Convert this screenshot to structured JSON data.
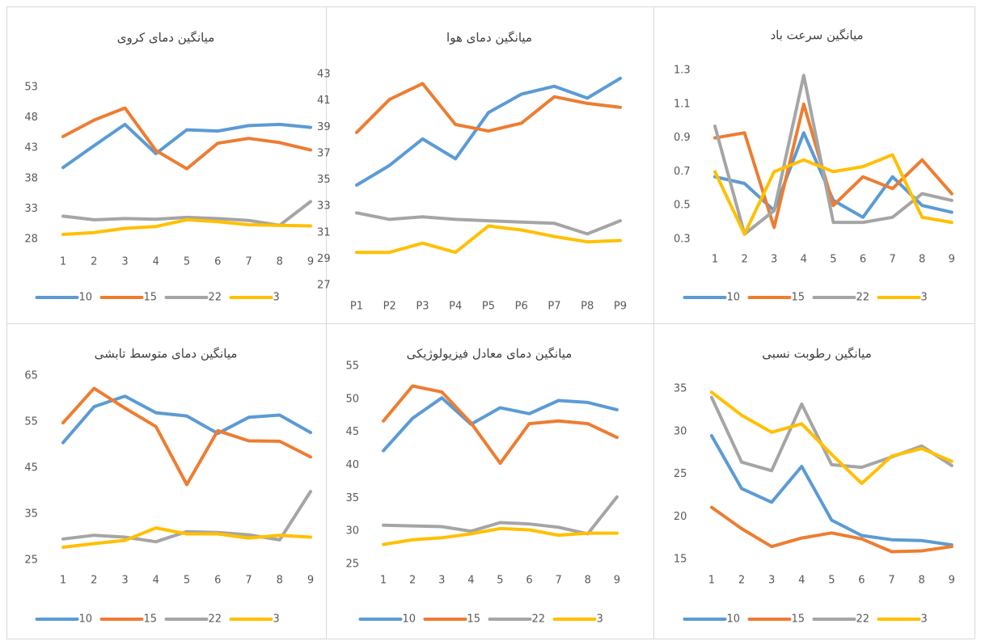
{
  "chart_data": [
    {
      "type": "line",
      "title": "میانگین دمای کروی",
      "categories": [
        "1",
        "2",
        "3",
        "4",
        "5",
        "6",
        "7",
        "8",
        "9"
      ],
      "ylim": [
        28,
        53
      ],
      "yticks": [
        28,
        33,
        38,
        43,
        48,
        53
      ],
      "grid": false,
      "legend": "bottom",
      "series": [
        {
          "name": "10",
          "color": "#5b9bd5",
          "values": [
            39.8,
            43.4,
            46.9,
            42.1,
            46.0,
            45.8,
            46.7,
            46.9,
            46.4
          ]
        },
        {
          "name": "15",
          "color": "#ed7d31",
          "values": [
            44.9,
            47.6,
            49.6,
            42.6,
            39.6,
            43.8,
            44.6,
            43.9,
            42.7
          ]
        },
        {
          "name": "22",
          "color": "#a5a5a5",
          "values": [
            31.8,
            31.2,
            31.4,
            31.3,
            31.6,
            31.4,
            31.1,
            30.3,
            34.2
          ]
        },
        {
          "name": "3",
          "color": "#ffc000",
          "values": [
            28.8,
            29.1,
            29.8,
            30.1,
            31.2,
            30.9,
            30.4,
            30.3,
            30.2
          ]
        }
      ]
    },
    {
      "type": "line",
      "title": "میانگین دمای هوا",
      "categories": [
        "P1",
        "P2",
        "P3",
        "P4",
        "P5",
        "P6",
        "P7",
        "P8",
        "P9"
      ],
      "ylim": [
        27,
        43
      ],
      "yticks": [
        27,
        29,
        31,
        33,
        35,
        37,
        39,
        41,
        43
      ],
      "grid": false,
      "series": [
        {
          "color": "#5b9bd5",
          "values": [
            34.6,
            36.1,
            38.1,
            36.6,
            40.1,
            41.5,
            42.1,
            41.2,
            42.7
          ]
        },
        {
          "color": "#ed7d31",
          "values": [
            38.6,
            41.1,
            42.3,
            39.2,
            38.7,
            39.3,
            41.3,
            40.8,
            40.5
          ]
        },
        {
          "color": "#a5a5a5",
          "values": [
            32.5,
            32.0,
            32.2,
            32.0,
            31.9,
            31.8,
            31.7,
            30.9,
            31.9
          ]
        },
        {
          "color": "#ffc000",
          "values": [
            29.5,
            29.5,
            30.2,
            29.5,
            31.5,
            31.2,
            30.7,
            30.3,
            30.4
          ]
        }
      ]
    },
    {
      "type": "line",
      "title": "میانگین سرعت باد",
      "categories": [
        "1",
        "2",
        "3",
        "4",
        "5",
        "6",
        "7",
        "8",
        "9"
      ],
      "ylim": [
        0.3,
        1.3
      ],
      "yticks": [
        0.3,
        0.5,
        0.7,
        0.9,
        1.1,
        1.3
      ],
      "grid": false,
      "legend": "bottom",
      "series": [
        {
          "name": "10",
          "color": "#5b9bd5",
          "values": [
            0.67,
            0.63,
            0.47,
            0.93,
            0.53,
            0.43,
            0.67,
            0.5,
            0.46
          ]
        },
        {
          "name": "15",
          "color": "#ed7d31",
          "values": [
            0.9,
            0.93,
            0.37,
            1.1,
            0.5,
            0.67,
            0.6,
            0.77,
            0.57
          ]
        },
        {
          "name": "22",
          "color": "#a5a5a5",
          "values": [
            0.97,
            0.33,
            0.47,
            1.27,
            0.4,
            0.4,
            0.43,
            0.57,
            0.53
          ]
        },
        {
          "name": "3",
          "color": "#ffc000",
          "values": [
            0.7,
            0.33,
            0.7,
            0.77,
            0.7,
            0.73,
            0.8,
            0.43,
            0.4
          ]
        }
      ]
    },
    {
      "type": "line",
      "title": "میانگین دمای متوسط تابشی",
      "categories": [
        "1",
        "2",
        "3",
        "4",
        "5",
        "6",
        "7",
        "8",
        "9"
      ],
      "ylim": [
        25,
        65
      ],
      "yticks": [
        25,
        35,
        45,
        55,
        65
      ],
      "grid": false,
      "legend": "bottom",
      "series": [
        {
          "name": "10",
          "color": "#5b9bd5",
          "values": [
            50.5,
            58.3,
            60.6,
            57.0,
            56.3,
            52.5,
            56.0,
            56.5,
            52.7
          ]
        },
        {
          "name": "15",
          "color": "#ed7d31",
          "values": [
            54.8,
            62.3,
            58.0,
            54.0,
            41.4,
            53.1,
            50.9,
            50.8,
            47.4
          ]
        },
        {
          "name": "22",
          "color": "#a5a5a5",
          "values": [
            29.6,
            30.4,
            30.0,
            29.0,
            31.2,
            31.0,
            30.5,
            29.4,
            39.9
          ]
        },
        {
          "name": "3",
          "color": "#ffc000",
          "values": [
            27.8,
            28.6,
            29.3,
            32.0,
            30.7,
            30.7,
            29.8,
            30.4,
            30.0
          ]
        }
      ]
    },
    {
      "type": "line",
      "title": "میانگین دمای معادل فیزیولوژیکی",
      "categories": [
        "1",
        "2",
        "3",
        "4",
        "5",
        "6",
        "7",
        "8",
        "9"
      ],
      "ylim": [
        25,
        55
      ],
      "yticks": [
        25,
        30,
        35,
        40,
        45,
        50,
        55
      ],
      "grid": false,
      "legend": "bottom",
      "series": [
        {
          "name": "10",
          "color": "#5b9bd5",
          "values": [
            42.2,
            47.1,
            50.2,
            46.2,
            48.7,
            47.8,
            49.8,
            49.5,
            48.4
          ]
        },
        {
          "name": "15",
          "color": "#ed7d31",
          "values": [
            46.7,
            52.0,
            51.1,
            46.4,
            40.3,
            46.3,
            46.7,
            46.3,
            44.2
          ]
        },
        {
          "name": "22",
          "color": "#a5a5a5",
          "values": [
            30.9,
            30.8,
            30.7,
            30.0,
            31.3,
            31.1,
            30.6,
            29.6,
            35.2
          ]
        },
        {
          "name": "3",
          "color": "#ffc000",
          "values": [
            28.0,
            28.7,
            29.0,
            29.6,
            30.4,
            30.2,
            29.4,
            29.7,
            29.7
          ]
        }
      ]
    },
    {
      "type": "line",
      "title": "میانگین رطوبت نسبی",
      "categories": [
        "1",
        "2",
        "3",
        "4",
        "5",
        "6",
        "7",
        "8",
        "9"
      ],
      "ylim": [
        15,
        35
      ],
      "yticks": [
        15,
        20,
        25,
        30,
        35
      ],
      "grid": false,
      "legend": "bottom",
      "series": [
        {
          "name": "10",
          "color": "#5b9bd5",
          "values": [
            29.5,
            23.3,
            21.7,
            25.9,
            19.6,
            17.8,
            17.3,
            17.2,
            16.7
          ]
        },
        {
          "name": "15",
          "color": "#ed7d31",
          "values": [
            21.1,
            18.6,
            16.5,
            17.5,
            18.1,
            17.4,
            15.9,
            16.0,
            16.5
          ]
        },
        {
          "name": "22",
          "color": "#a5a5a5",
          "values": [
            34.0,
            26.4,
            25.4,
            33.2,
            26.1,
            25.8,
            27.0,
            28.3,
            26.0
          ]
        },
        {
          "name": "3",
          "color": "#ffc000",
          "values": [
            34.6,
            31.9,
            29.9,
            30.9,
            27.3,
            23.9,
            27.1,
            28.0,
            26.5
          ]
        }
      ]
    }
  ]
}
